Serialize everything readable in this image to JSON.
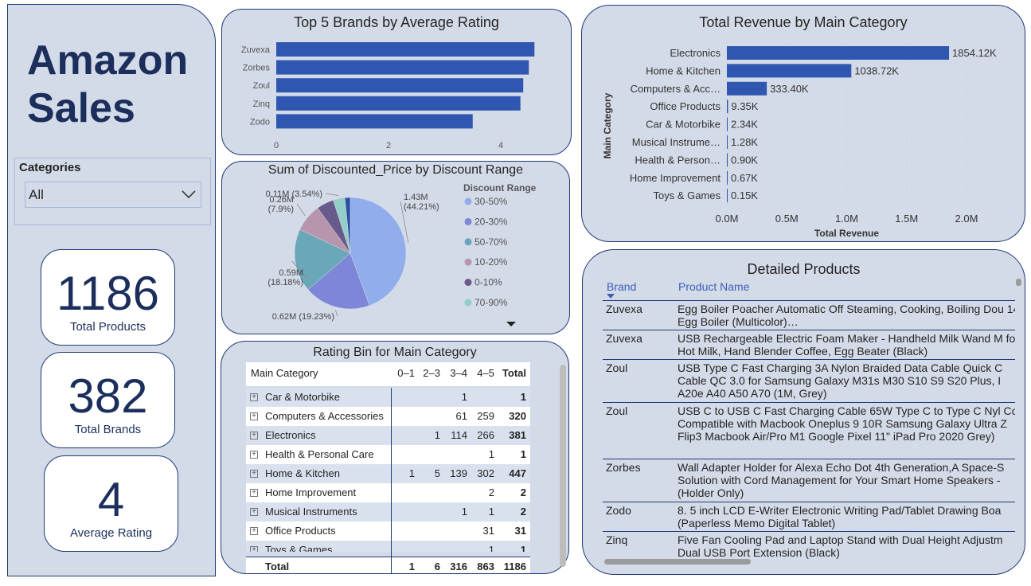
{
  "title_line1": "Amazon",
  "title_line2": "Sales",
  "slicer": {
    "label": "Categories",
    "value": "All",
    "icon": "chevron-down-icon"
  },
  "cards": [
    {
      "value": "1186",
      "label": "Total Products"
    },
    {
      "value": "382",
      "label": "Total Brands"
    },
    {
      "value": "4",
      "label": "Average Rating"
    }
  ],
  "top_brands": {
    "title": "Top 5 Brands by Average Rating",
    "ticks": [
      "0",
      "2",
      "4"
    ]
  },
  "discount_pie": {
    "title": "Sum of Discounted_Price by Discount Range",
    "legend_title": "Discount Range",
    "legend_more_icon": "triangle-down-icon"
  },
  "revenue": {
    "title": "Total Revenue by Main Category",
    "xlabel": "Total Revenue",
    "ylabel": "Main Category",
    "ticks": [
      "0.0M",
      "0.5M",
      "1.0M",
      "1.5M",
      "2.0M"
    ]
  },
  "matrix": {
    "title": "Rating Bin for Main Category",
    "headers": [
      "Main Category",
      "0–1",
      "2–3",
      "3–4",
      "4–5",
      "Total"
    ],
    "rows": [
      {
        "category": "Car & Motorbike",
        "c01": "",
        "c23": "",
        "c34": "1",
        "c45": "",
        "total": "1"
      },
      {
        "category": "Computers & Accessories",
        "c01": "",
        "c23": "",
        "c34": "61",
        "c45": "259",
        "total": "320"
      },
      {
        "category": "Electronics",
        "c01": "",
        "c23": "1",
        "c34": "114",
        "c45": "266",
        "total": "381"
      },
      {
        "category": "Health & Personal Care",
        "c01": "",
        "c23": "",
        "c34": "",
        "c45": "1",
        "total": "1"
      },
      {
        "category": "Home & Kitchen",
        "c01": "1",
        "c23": "5",
        "c34": "139",
        "c45": "302",
        "total": "447"
      },
      {
        "category": "Home Improvement",
        "c01": "",
        "c23": "",
        "c34": "",
        "c45": "2",
        "total": "2"
      },
      {
        "category": "Musical Instruments",
        "c01": "",
        "c23": "",
        "c34": "1",
        "c45": "1",
        "total": "2"
      },
      {
        "category": "Office Products",
        "c01": "",
        "c23": "",
        "c34": "",
        "c45": "31",
        "total": "31"
      },
      {
        "category": "Toys & Games",
        "c01": "",
        "c23": "",
        "c34": "",
        "c45": "1",
        "total": "1"
      }
    ],
    "total_row": {
      "category": "Total",
      "c01": "1",
      "c23": "6",
      "c34": "316",
      "c45": "863",
      "total": "1186"
    }
  },
  "products": {
    "title": "Detailed Products",
    "col_brand": "Brand",
    "col_product": "Product Name",
    "rows": [
      {
        "brand": "Zuvexa",
        "product": "Egg Boiler Poacher Automatic Off Steaming, Cooking, Boiling Dou 14 Egg Boiler (Multicolor)…"
      },
      {
        "brand": "Zuvexa",
        "product": "USB Rechargeable Electric Foam Maker - Handheld Milk Wand M for Hot Milk, Hand Blender Coffee, Egg Beater (Black)"
      },
      {
        "brand": "Zoul",
        "product": "USB Type C Fast Charging 3A Nylon Braided Data Cable Quick C Cable QC 3.0 for Samsung Galaxy M31s M30 S10 S9 S20 Plus, I A20e A40 A50 A70 (1M, Grey)"
      },
      {
        "brand": "Zoul",
        "product": "USB C to USB C Fast Charging Cable 65W Type C to Type C Nyl Cord Compatible with Macbook Oneplus 9 10R Samsung Galaxy Ultra Z Flip3 Macbook Air/Pro M1 Google Pixel 11\" iPad Pro 2020 Grey)"
      },
      {
        "brand": "Zorbes",
        "product": "Wall Adapter Holder for Alexa Echo Dot 4th Generation,A Space-S Solution with Cord Management for Your Smart Home Speakers - (Holder Only)"
      },
      {
        "brand": "Zodo",
        "product": "8. 5 inch LCD E-Writer Electronic Writing Pad/Tablet Drawing Boa (Paperless Memo Digital Tablet)"
      },
      {
        "brand": "Zinq",
        "product": "Five Fan Cooling Pad and Laptop Stand with Dual Height Adjustm Dual USB Port Extension (Black)"
      }
    ]
  },
  "chart_data": [
    {
      "type": "bar",
      "orientation": "horizontal",
      "title": "Top 5 Brands by Average Rating",
      "categories": [
        "Zuvexa",
        "Zorbes",
        "Zoul",
        "Zinq",
        "Zodo"
      ],
      "values": [
        4.6,
        4.5,
        4.4,
        4.35,
        3.5
      ],
      "xlim": [
        0,
        5
      ],
      "color": "#2f56b0"
    },
    {
      "type": "pie",
      "title": "Sum of Discounted_Price by Discount Range",
      "legend_title": "Discount Range",
      "slices": [
        {
          "name": "30-50%",
          "value": 1.43,
          "label": "1.43M\n(44.21%)",
          "color": "#91adec"
        },
        {
          "name": "20-30%",
          "value": 0.62,
          "label": "0.62M (19.23%)",
          "color": "#7e86d8"
        },
        {
          "name": "50-70%",
          "value": 0.59,
          "label": "0.59M\n(18.18%)",
          "color": "#6aa7b8"
        },
        {
          "name": "10-20%",
          "value": 0.26,
          "label": "0.26M\n(7.9%)",
          "color": "#b795ad"
        },
        {
          "name": "0-10%",
          "value": 0.16,
          "label": "",
          "color": "#685a8a"
        },
        {
          "name": "70-90%",
          "value": 0.11,
          "label": "0.11M (3.54%)",
          "color": "#93cfc8"
        },
        {
          "name": "",
          "value": 0.05,
          "label": "",
          "color": "#2c4fa8"
        }
      ],
      "legend_placement": "right"
    },
    {
      "type": "bar",
      "orientation": "horizontal",
      "title": "Total Revenue by Main Category",
      "xlabel": "Total Revenue",
      "ylabel": "Main Category",
      "categories": [
        "Electronics",
        "Home & Kitchen",
        "Computers & Acc…",
        "Office Products",
        "Car & Motorbike",
        "Musical Instrume…",
        "Health & Person…",
        "Home Improvement",
        "Toys & Games"
      ],
      "values": [
        1854.12,
        1038.72,
        333.4,
        9.35,
        2.34,
        1.28,
        0.9,
        0.67,
        0.15
      ],
      "value_labels": [
        "1854.12K",
        "1038.72K",
        "333.40K",
        "9.35K",
        "2.34K",
        "1.28K",
        "0.90K",
        "0.67K",
        "0.15K"
      ],
      "units": "K",
      "xlim": [
        0,
        2000
      ],
      "color": "#2f56b0"
    }
  ]
}
